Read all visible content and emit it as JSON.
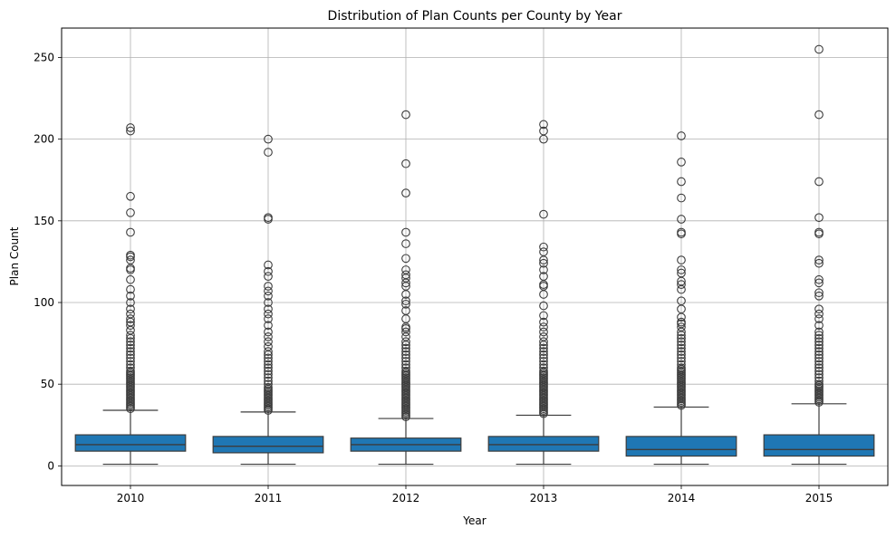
{
  "chart_data": {
    "type": "box",
    "title": "Distribution of Plan Counts per County by Year",
    "xlabel": "Year",
    "ylabel": "Plan Count",
    "categories": [
      "2010",
      "2011",
      "2012",
      "2013",
      "2014",
      "2015"
    ],
    "yticks": [
      0,
      50,
      100,
      150,
      200,
      250
    ],
    "ylim": [
      -12,
      268
    ],
    "grid": true,
    "box_color": "#1f77b4",
    "line_color": "#3c3c3c",
    "boxes": [
      {
        "category": "2010",
        "whisker_low": 1,
        "q1": 9,
        "median": 13,
        "q3": 19,
        "whisker_high": 34,
        "outliers": [
          35,
          36,
          37,
          38,
          39,
          40,
          41,
          42,
          43,
          44,
          45,
          46,
          47,
          48,
          49,
          50,
          51,
          52,
          53,
          54,
          55,
          56,
          57,
          58,
          60,
          62,
          64,
          66,
          68,
          70,
          72,
          74,
          76,
          78,
          80,
          83,
          86,
          88,
          90,
          93,
          96,
          100,
          104,
          108,
          114,
          120,
          121,
          126,
          128,
          129,
          143,
          155,
          165,
          205,
          207
        ]
      },
      {
        "category": "2011",
        "whisker_low": 1,
        "q1": 8,
        "median": 12,
        "q3": 18,
        "whisker_high": 33,
        "outliers": [
          34,
          35,
          36,
          37,
          38,
          39,
          40,
          41,
          42,
          43,
          44,
          45,
          46,
          47,
          48,
          50,
          52,
          54,
          56,
          58,
          60,
          62,
          64,
          66,
          68,
          70,
          73,
          76,
          79,
          82,
          86,
          90,
          93,
          96,
          100,
          104,
          107,
          110,
          116,
          119,
          123,
          151,
          152,
          192,
          200
        ]
      },
      {
        "category": "2012",
        "whisker_low": 1,
        "q1": 9,
        "median": 13,
        "q3": 17,
        "whisker_high": 29,
        "outliers": [
          30,
          31,
          32,
          33,
          34,
          35,
          36,
          37,
          38,
          39,
          40,
          41,
          42,
          43,
          44,
          45,
          46,
          47,
          48,
          49,
          50,
          51,
          52,
          53,
          54,
          55,
          56,
          57,
          58,
          60,
          62,
          64,
          66,
          68,
          70,
          72,
          74,
          76,
          79,
          82,
          84,
          85,
          90,
          95,
          99,
          101,
          105,
          110,
          112,
          115,
          117,
          120,
          127,
          136,
          143,
          167,
          185,
          215
        ]
      },
      {
        "category": "2013",
        "whisker_low": 1,
        "q1": 9,
        "median": 13,
        "q3": 18,
        "whisker_high": 31,
        "outliers": [
          32,
          33,
          34,
          35,
          36,
          37,
          38,
          39,
          40,
          41,
          42,
          43,
          44,
          45,
          46,
          47,
          48,
          49,
          50,
          51,
          52,
          53,
          54,
          55,
          56,
          57,
          58,
          60,
          62,
          64,
          66,
          68,
          70,
          72,
          74,
          76,
          79,
          82,
          85,
          88,
          92,
          98,
          105,
          110,
          111,
          116,
          120,
          124,
          126,
          131,
          134,
          154,
          200,
          205,
          209
        ]
      },
      {
        "category": "2014",
        "whisker_low": 1,
        "q1": 6,
        "median": 10,
        "q3": 18,
        "whisker_high": 36,
        "outliers": [
          37,
          38,
          39,
          40,
          41,
          42,
          43,
          44,
          45,
          46,
          47,
          48,
          49,
          50,
          51,
          52,
          53,
          54,
          55,
          56,
          57,
          58,
          59,
          60,
          62,
          64,
          66,
          68,
          70,
          72,
          74,
          76,
          78,
          80,
          82,
          85,
          87,
          88,
          91,
          96,
          101,
          108,
          111,
          113,
          118,
          120,
          126,
          142,
          143,
          151,
          164,
          174,
          186,
          202
        ]
      },
      {
        "category": "2015",
        "whisker_low": 1,
        "q1": 6,
        "median": 10,
        "q3": 19,
        "whisker_high": 38,
        "outliers": [
          39,
          40,
          41,
          42,
          43,
          44,
          45,
          46,
          47,
          48,
          49,
          50,
          52,
          54,
          56,
          58,
          60,
          62,
          64,
          66,
          68,
          70,
          72,
          74,
          76,
          78,
          80,
          82,
          86,
          90,
          93,
          96,
          104,
          106,
          112,
          114,
          124,
          126,
          142,
          143,
          152,
          174,
          215,
          255
        ]
      }
    ]
  }
}
